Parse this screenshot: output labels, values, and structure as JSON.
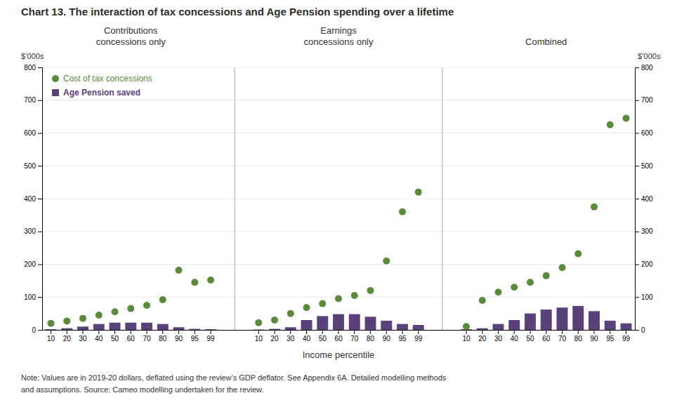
{
  "chart_data": {
    "type": "bar",
    "title": "Chart 13. The interaction of tax concessions and Age Pension spending over a lifetime",
    "subtitles": [
      "Contributions\nconcessions only",
      "Earnings\nconcessions only",
      "Combined"
    ],
    "xlabel": "Income percentile",
    "ylabel": "$’000s",
    "categories": [
      "10",
      "20",
      "30",
      "40",
      "50",
      "60",
      "70",
      "80",
      "90",
      "95",
      "99",
      "10",
      "20",
      "30",
      "40",
      "50",
      "60",
      "70",
      "80",
      "90",
      "95",
      "99",
      "10",
      "20",
      "30",
      "40",
      "50",
      "60",
      "70",
      "80",
      "90",
      "95",
      "99"
    ],
    "series": [
      {
        "name": "Age Pension saved",
        "type": "bar",
        "color": "#5b4179",
        "values": [
          2,
          5,
          10,
          18,
          22,
          22,
          22,
          18,
          8,
          3,
          2,
          1,
          3,
          8,
          30,
          42,
          48,
          48,
          40,
          28,
          18,
          15,
          2,
          5,
          18,
          30,
          50,
          62,
          68,
          73,
          57,
          28,
          20
        ]
      },
      {
        "name": "Cost of tax concessions",
        "type": "scatter",
        "color": "#5a8a3c",
        "values": [
          20,
          27,
          35,
          45,
          55,
          65,
          75,
          92,
          182,
          145,
          152,
          22,
          30,
          50,
          68,
          80,
          95,
          105,
          120,
          210,
          360,
          420,
          10,
          90,
          115,
          130,
          145,
          165,
          190,
          232,
          375,
          625,
          645
        ]
      }
    ],
    "ylim": [
      0,
      800
    ],
    "yticks": [
      0,
      100,
      200,
      300,
      400,
      500,
      600,
      700,
      800
    ],
    "grid": true,
    "legend": "top-left",
    "annotations": [
      "Note: Values are in 2019-20 dollars, deflated using the review’s GDP deflator. See Appendix 6A. Detailed modelling methods",
      "and assumptions. Source: Cameo modelling undertaken for the review."
    ]
  }
}
